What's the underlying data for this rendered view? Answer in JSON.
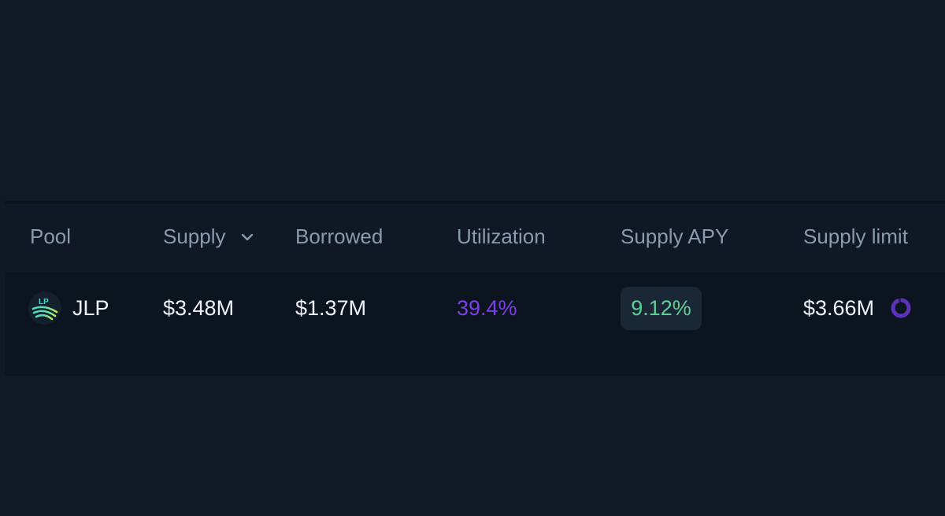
{
  "table": {
    "headers": {
      "pool": "Pool",
      "supply": "Supply",
      "borrowed": "Borrowed",
      "utilization": "Utilization",
      "supply_apy": "Supply APY",
      "supply_limit": "Supply limit"
    },
    "sort": {
      "column": "supply",
      "icon": "chevron-down-icon"
    },
    "rows": [
      {
        "pool_name": "JLP",
        "pool_icon_text": "LP",
        "pool_icon": "jlp-token-icon",
        "supply": "$3.48M",
        "borrowed": "$1.37M",
        "utilization": "39.4%",
        "supply_apy": "9.12%",
        "supply_limit": "$3.66M",
        "supply_limit_indicator": "limit-progress-ring-icon"
      }
    ]
  },
  "colors": {
    "background": "#101a26",
    "row_background": "#0c141f",
    "header_text": "#8a9bb0",
    "value_text": "#eef2f7",
    "utilization": "#7b3fe8",
    "apy_text": "#5fcf92",
    "apy_badge": "#1a2736",
    "limit_ring": "#5b33b8"
  }
}
